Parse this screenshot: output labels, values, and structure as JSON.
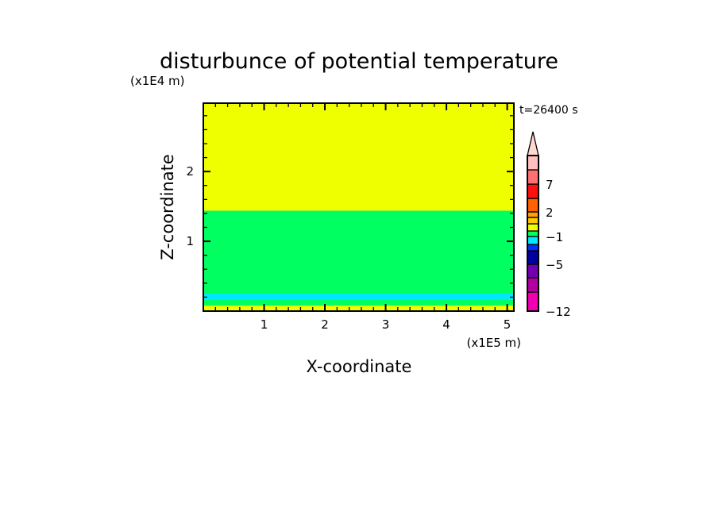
{
  "chart_data": {
    "type": "heatmap",
    "title": "disturbunce of potential temperature",
    "xlabel": "X-coordinate",
    "ylabel": "Z-coordinate",
    "x_unit": "(x1E5 m)",
    "y_unit": "(x1E4 m)",
    "time_label": "t=26400 s",
    "xlim": [
      0,
      5.11
    ],
    "ylim": [
      0,
      2.98
    ],
    "x_ticks": [
      1,
      2,
      3,
      4,
      5
    ],
    "y_ticks": [
      1,
      2
    ],
    "minor_tick_step": 0.2,
    "grid": false,
    "bands": [
      {
        "z_from": 0,
        "z_to": 0.08,
        "color": "#f0ff00"
      },
      {
        "z_from": 0.08,
        "z_to": 0.17,
        "color": "#00ff60"
      },
      {
        "z_from": 0.17,
        "z_to": 0.25,
        "color": "#00e8ff"
      },
      {
        "z_from": 0.25,
        "z_to": 1.44,
        "color": "#00ff60"
      },
      {
        "z_from": 1.44,
        "z_to": 2.98,
        "color": "#f0ff00"
      }
    ],
    "colorbar": {
      "labels": [
        {
          "text": "7",
          "index": 12
        },
        {
          "text": "2",
          "index": 10
        },
        {
          "text": "−1",
          "index": 6
        },
        {
          "text": "−5",
          "index": 3
        },
        {
          "text": "−12",
          "index": 0
        }
      ],
      "colors_bottom_to_top": [
        "#f000b0",
        "#b000a0",
        "#7000b0",
        "#0000a0",
        "#0030ff",
        "#00e8ff",
        "#00ff60",
        "#f0ff00",
        "#ffc800",
        "#ffa000",
        "#ff6000",
        "#ff1010",
        "#ff7070",
        "#ffc0c0"
      ],
      "extend_color": "#ffd8d0"
    }
  }
}
